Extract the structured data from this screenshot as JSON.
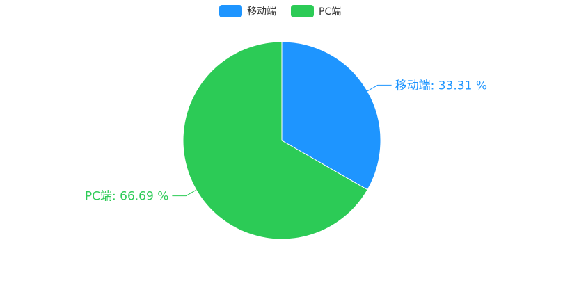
{
  "chart_data": {
    "type": "pie",
    "title": "",
    "legend_position": "top-center",
    "series": [
      {
        "name": "移动端",
        "value": 33.31,
        "label": "移动端: 33.31 %",
        "color": "#1e95ff"
      },
      {
        "name": "PC端",
        "value": 66.69,
        "label": "PC端: 66.69 %",
        "color": "#2ccb56"
      }
    ],
    "start_angle": "12 o'clock",
    "direction": "clockwise"
  }
}
